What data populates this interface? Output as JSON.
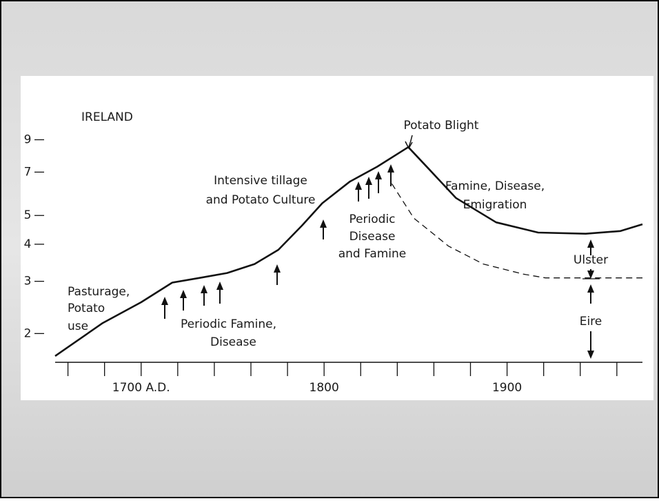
{
  "chart_data": {
    "type": "line",
    "title": "IRELAND",
    "ylog": true,
    "xlim": [
      1653,
      1974
    ],
    "ylim": [
      1.6,
      14
    ],
    "xticks": [
      {
        "value": 1700,
        "label": "1700 A.D."
      },
      1800,
      1900
    ],
    "xminor_ticks": [
      1660,
      1680,
      1700,
      1720,
      1740,
      1760,
      1780,
      1800,
      1820,
      1840,
      1860,
      1880,
      1900,
      1920,
      1940,
      1960
    ],
    "yticks": [
      2,
      3,
      4,
      5,
      7,
      9
    ],
    "series": [
      {
        "color": "#111111",
        "style": "solid",
        "x": [
          1653,
          1679,
          1700,
          1717,
          1732,
          1747,
          1762,
          1775,
          1788,
          1799,
          1814,
          1829,
          1846,
          1857,
          1872,
          1894,
          1917,
          1943,
          1962,
          1974
        ],
        "values": [
          1.68,
          2.17,
          2.55,
          2.97,
          3.08,
          3.2,
          3.43,
          3.83,
          4.63,
          5.5,
          6.5,
          7.3,
          8.5,
          7.2,
          5.73,
          4.74,
          4.38,
          4.34,
          4.43,
          4.67
        ]
      },
      {
        "color": "#111111",
        "style": "dashed",
        "x": [
          1837,
          1849,
          1868,
          1887,
          1909,
          1921,
          1974
        ],
        "values": [
          6.4,
          4.9,
          3.94,
          3.43,
          3.17,
          3.08,
          3.08
        ]
      }
    ],
    "annotations": [
      [
        "Potato Blight"
      ],
      [
        "Intensive tillage",
        "and Potato Culture"
      ],
      [
        "Famine, Disease,",
        "Emigration"
      ],
      [
        "Periodic",
        "Disease",
        "and Famine"
      ],
      [
        "Pasturage,",
        "Potato",
        "use"
      ],
      [
        "Periodic Famine,",
        "Disease"
      ],
      [
        "Ulster"
      ],
      [
        "Eire"
      ]
    ]
  }
}
